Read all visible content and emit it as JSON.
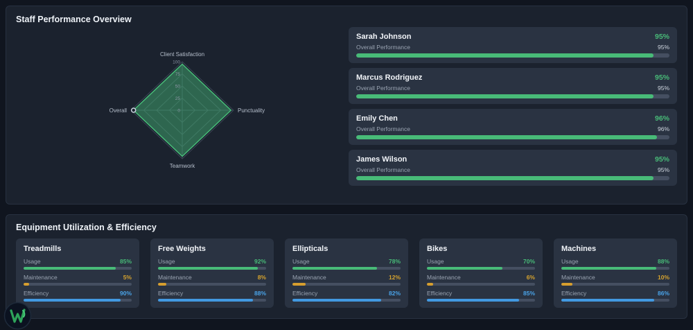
{
  "colors": {
    "green": "#48bb78",
    "yellow": "#d69e2e",
    "blue": "#4299e1"
  },
  "staff_section": {
    "title": "Staff Performance Overview",
    "staff": [
      {
        "name": "Sarah Johnson",
        "percent": "95%",
        "metric_label": "Overall Performance",
        "metric_percent": "95%",
        "value": 95
      },
      {
        "name": "Marcus Rodriguez",
        "percent": "95%",
        "metric_label": "Overall Performance",
        "metric_percent": "95%",
        "value": 95
      },
      {
        "name": "Emily Chen",
        "percent": "96%",
        "metric_label": "Overall Performance",
        "metric_percent": "96%",
        "value": 96
      },
      {
        "name": "James Wilson",
        "percent": "95%",
        "metric_label": "Overall Performance",
        "metric_percent": "95%",
        "value": 95
      }
    ]
  },
  "equipment_section": {
    "title": "Equipment Utilization & Efficiency",
    "cards": [
      {
        "name": "Treadmills",
        "metrics": [
          {
            "label": "Usage",
            "percent": "85%",
            "value": 85,
            "color": "green"
          },
          {
            "label": "Maintenance",
            "percent": "5%",
            "value": 5,
            "color": "yellow"
          },
          {
            "label": "Efficiency",
            "percent": "90%",
            "value": 90,
            "color": "blue"
          }
        ]
      },
      {
        "name": "Free Weights",
        "metrics": [
          {
            "label": "Usage",
            "percent": "92%",
            "value": 92,
            "color": "green"
          },
          {
            "label": "Maintenance",
            "percent": "8%",
            "value": 8,
            "color": "yellow"
          },
          {
            "label": "Efficiency",
            "percent": "88%",
            "value": 88,
            "color": "blue"
          }
        ]
      },
      {
        "name": "Ellipticals",
        "metrics": [
          {
            "label": "Usage",
            "percent": "78%",
            "value": 78,
            "color": "green"
          },
          {
            "label": "Maintenance",
            "percent": "12%",
            "value": 12,
            "color": "yellow"
          },
          {
            "label": "Efficiency",
            "percent": "82%",
            "value": 82,
            "color": "blue"
          }
        ]
      },
      {
        "name": "Bikes",
        "metrics": [
          {
            "label": "Usage",
            "percent": "70%",
            "value": 70,
            "color": "green"
          },
          {
            "label": "Maintenance",
            "percent": "6%",
            "value": 6,
            "color": "yellow"
          },
          {
            "label": "Efficiency",
            "percent": "85%",
            "value": 85,
            "color": "blue"
          }
        ]
      },
      {
        "name": "Machines",
        "metrics": [
          {
            "label": "Usage",
            "percent": "88%",
            "value": 88,
            "color": "green"
          },
          {
            "label": "Maintenance",
            "percent": "10%",
            "value": 10,
            "color": "yellow"
          },
          {
            "label": "Efficiency",
            "percent": "86%",
            "value": 86,
            "color": "blue"
          }
        ]
      }
    ]
  },
  "chart_data": [
    {
      "type": "radar",
      "title": "Staff Performance Overview",
      "categories": [
        "Client Satisfaction",
        "Punctuality",
        "Teamwork",
        "Overall"
      ],
      "series": [
        {
          "name": "Overall Performance",
          "values": [
            95,
            95,
            95,
            95
          ]
        }
      ],
      "ticks": [
        0,
        25,
        50,
        75,
        100
      ],
      "range": [
        0,
        100
      ],
      "grid": true,
      "fill_color": "#48bb78"
    },
    {
      "type": "bar",
      "title": "Equipment Utilization & Efficiency",
      "categories": [
        "Treadmills",
        "Free Weights",
        "Ellipticals",
        "Bikes",
        "Machines"
      ],
      "series": [
        {
          "name": "Usage",
          "values": [
            85,
            92,
            78,
            70,
            88
          ]
        },
        {
          "name": "Maintenance",
          "values": [
            5,
            8,
            12,
            6,
            10
          ]
        },
        {
          "name": "Efficiency",
          "values": [
            90,
            88,
            82,
            85,
            86
          ]
        }
      ],
      "range": [
        0,
        100
      ]
    }
  ]
}
